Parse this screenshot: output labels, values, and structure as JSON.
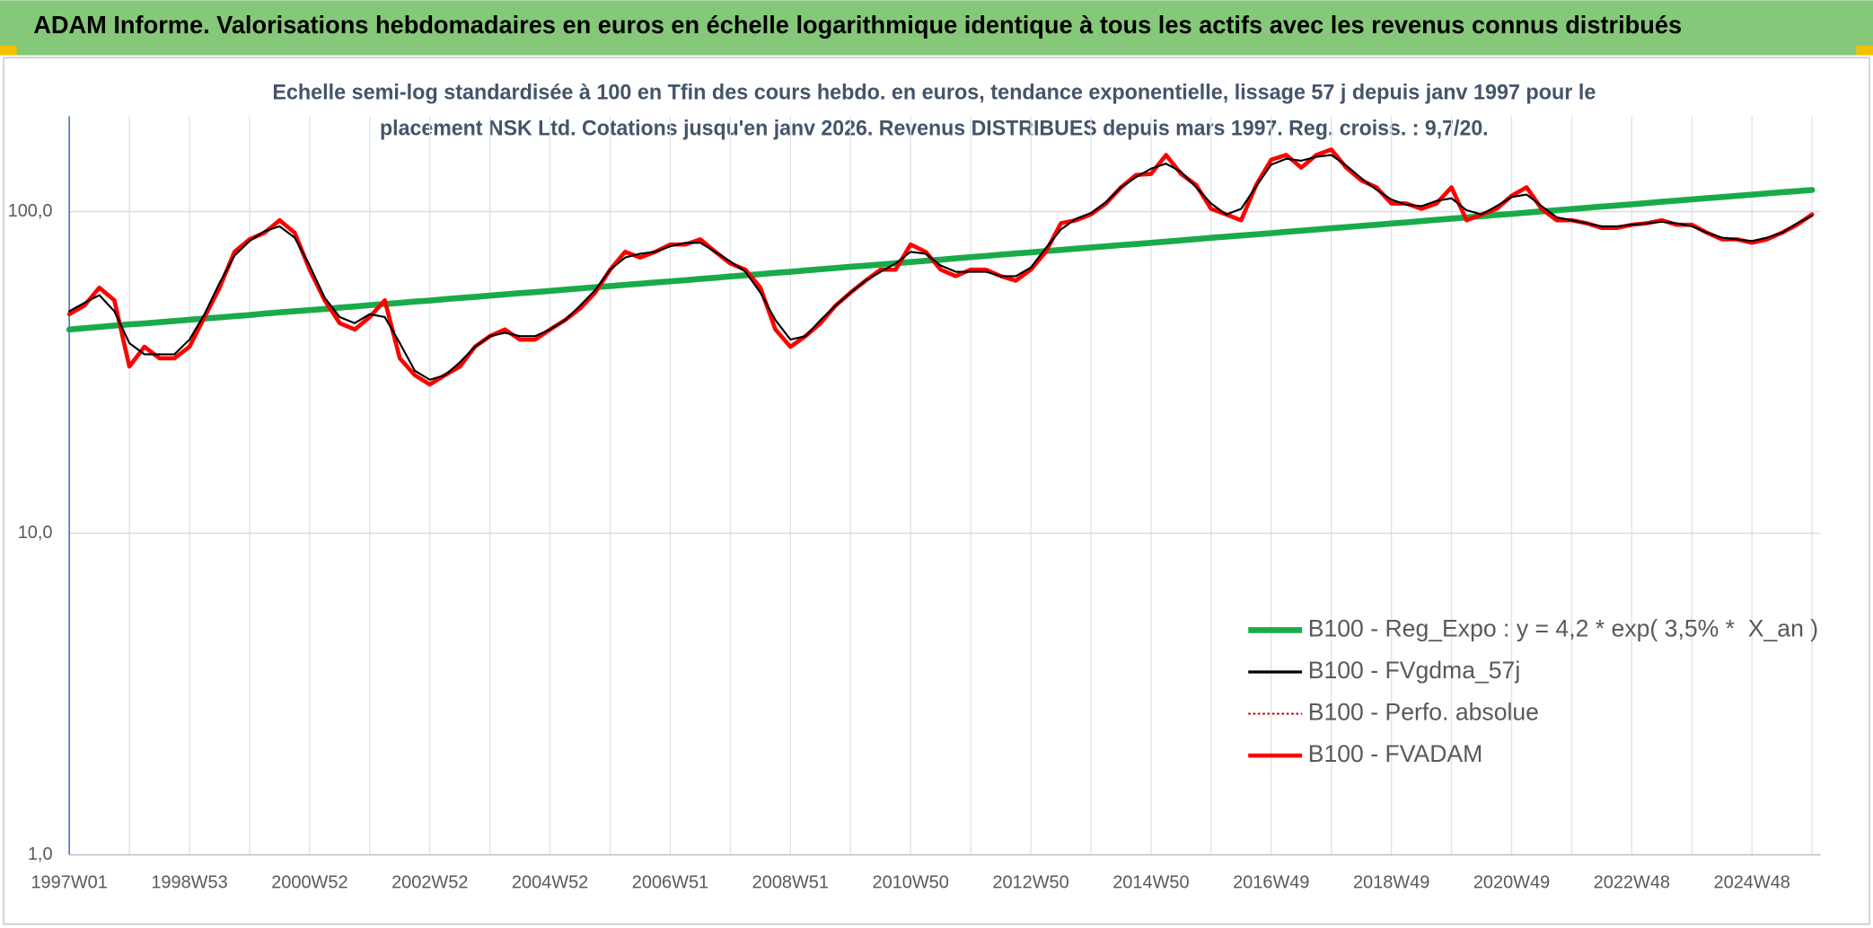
{
  "chart_data": {
    "type": "line",
    "title": "ADAM Informe. Valorisations hebdomadaires en euros en échelle logarithmique identique à tous les actifs avec les revenus connus distribués",
    "subtitle": [
      "Echelle semi-log standardisée à 100 en Tfin des cours hebdo. en euros, tendance exponentielle, lissage 57 j depuis janv 1997 pour le",
      "placement NSK Ltd. Cotations jusqu'en janv 2026. Revenus DISTRIBUES depuis mars 1997. Reg. croiss. : 9,7/20."
    ],
    "log_scale": true,
    "grid": true,
    "legend": "lower right",
    "ylim": [
      1,
      198
    ],
    "yticks": [
      {
        "value": 1,
        "label": "1,0"
      },
      {
        "value": 10,
        "label": "10,0"
      },
      {
        "value": 100,
        "label": "100,0"
      }
    ],
    "categories": [
      "1997W01",
      null,
      null,
      null,
      null,
      null,
      null,
      null,
      "1998W53",
      null,
      null,
      null,
      null,
      null,
      null,
      null,
      "2000W52",
      null,
      null,
      null,
      null,
      null,
      null,
      null,
      "2002W52",
      null,
      null,
      null,
      null,
      null,
      null,
      null,
      "2004W52",
      null,
      null,
      null,
      null,
      null,
      null,
      null,
      "2006W51",
      null,
      null,
      null,
      null,
      null,
      null,
      null,
      "2008W51",
      null,
      null,
      null,
      null,
      null,
      null,
      null,
      "2010W50",
      null,
      null,
      null,
      null,
      null,
      null,
      null,
      "2012W50",
      null,
      null,
      null,
      null,
      null,
      null,
      null,
      "2014W50",
      null,
      null,
      null,
      null,
      null,
      null,
      null,
      "2016W49",
      null,
      null,
      null,
      null,
      null,
      null,
      null,
      "2018W49",
      null,
      null,
      null,
      null,
      null,
      null,
      null,
      "2020W49",
      null,
      null,
      null,
      null,
      null,
      null,
      null,
      "2022W48",
      null,
      null,
      null,
      null,
      null,
      null,
      null,
      "2024W48",
      null,
      null,
      null,
      null
    ],
    "series": [
      {
        "name": "B100 - Reg_Expo : y = 4,2 * exp( 3,5% *  X_an )",
        "color": "#1aaa4a",
        "style": "solid",
        "values": [
          43,
          43.4,
          43.8,
          44.2,
          44.6,
          44.9,
          45.3,
          45.7,
          46.1,
          46.5,
          46.9,
          47.3,
          47.7,
          48.2,
          48.6,
          49.0,
          49.4,
          49.8,
          50.3,
          50.7,
          51.2,
          51.6,
          52.0,
          52.5,
          52.9,
          53.4,
          53.9,
          54.3,
          54.8,
          55.3,
          55.8,
          56.2,
          56.7,
          57.2,
          57.7,
          58.2,
          58.7,
          59.2,
          59.7,
          60.2,
          60.7,
          61.2,
          61.8,
          62.3,
          62.9,
          63.4,
          63.9,
          64.5,
          65.0,
          65.6,
          66.2,
          66.8,
          67.4,
          67.9,
          68.5,
          69.1,
          69.7,
          70.3,
          70.9,
          71.6,
          72.2,
          72.8,
          73.5,
          74.1,
          74.7,
          75.4,
          76.0,
          76.7,
          77.4,
          78.0,
          78.7,
          79.3,
          80.0,
          80.7,
          81.4,
          82.1,
          82.9,
          83.6,
          84.3,
          85.0,
          85.7,
          86.5,
          87.2,
          88.0,
          88.8,
          89.5,
          90.3,
          91.0,
          91.8,
          92.6,
          93.5,
          94.3,
          95.1,
          95.9,
          96.8,
          97.6,
          98.4,
          99.3,
          100.2,
          101.0,
          101.9,
          102.8,
          103.7,
          104.5,
          105.4,
          106.3,
          107.3,
          108.2,
          109.2,
          110.1,
          111.0,
          112.0,
          112.9,
          113.9,
          114.9,
          115.8,
          116.8
        ]
      },
      {
        "name": "B100 - FVgdma_57j",
        "color": "#000000",
        "style": "solid",
        "values": [
          49,
          52,
          55,
          49,
          39,
          36,
          36,
          36,
          40,
          48,
          60,
          73,
          81,
          87,
          90,
          83,
          68,
          54,
          47,
          45,
          48,
          47,
          39,
          32,
          30,
          31,
          34,
          38,
          41,
          42,
          41,
          41,
          43,
          46,
          51,
          57,
          66,
          72,
          74,
          75,
          78,
          80,
          80,
          75,
          70,
          65,
          56,
          46,
          40,
          41,
          46,
          51,
          56,
          61,
          65,
          69,
          75,
          74,
          68,
          65,
          65,
          65,
          63,
          63,
          67,
          77,
          88,
          95,
          99,
          107,
          119,
          128,
          136,
          141,
          133,
          119,
          106,
          98,
          102,
          120,
          140,
          146,
          144,
          148,
          150,
          139,
          127,
          117,
          109,
          105,
          104,
          108,
          110,
          101,
          98,
          104,
          111,
          113,
          104,
          96,
          94,
          92,
          90,
          90,
          91,
          92,
          93,
          92,
          90,
          86,
          83,
          82,
          81,
          83,
          86,
          92,
          97
        ]
      },
      {
        "name": "B100 - Perfo. absolue",
        "color": "#c00000",
        "style": "dotted",
        "values": [
          48,
          51,
          58,
          53,
          33,
          38,
          35,
          35,
          38,
          47,
          58,
          75,
          82,
          86,
          94,
          86,
          66,
          53,
          45,
          43,
          47,
          53,
          35,
          31,
          29,
          31,
          33,
          38,
          41,
          43,
          40,
          40,
          43,
          46,
          50,
          56,
          66,
          75,
          72,
          75,
          79,
          79,
          82,
          75,
          69,
          66,
          58,
          43,
          38,
          41,
          45,
          51,
          56,
          61,
          66,
          66,
          79,
          75,
          66,
          63,
          66,
          66,
          63,
          61,
          66,
          75,
          92,
          94,
          98,
          106,
          119,
          130,
          131,
          150,
          131,
          121,
          102,
          98,
          94,
          121,
          145,
          150,
          137,
          150,
          156,
          137,
          125,
          119,
          106,
          106,
          102,
          106,
          119,
          94,
          98,
          102,
          112,
          119,
          102,
          94,
          94,
          92,
          89,
          89,
          91,
          92,
          94,
          91,
          91,
          86,
          82,
          82,
          80,
          82,
          86,
          91,
          98
        ]
      },
      {
        "name": "B100 - FVADAM",
        "color": "#ff0000",
        "style": "solid",
        "values": [
          48,
          51,
          58,
          53,
          33,
          38,
          35,
          35,
          38,
          47,
          58,
          75,
          82,
          86,
          94,
          86,
          66,
          53,
          45,
          43,
          47,
          53,
          35,
          31,
          29,
          31,
          33,
          38,
          41,
          43,
          40,
          40,
          43,
          46,
          50,
          56,
          66,
          75,
          72,
          75,
          79,
          79,
          82,
          75,
          69,
          66,
          58,
          43,
          38,
          41,
          45,
          51,
          56,
          61,
          66,
          66,
          79,
          75,
          66,
          63,
          66,
          66,
          63,
          61,
          66,
          75,
          92,
          94,
          98,
          106,
          119,
          130,
          131,
          150,
          131,
          121,
          102,
          98,
          94,
          121,
          145,
          150,
          137,
          150,
          156,
          137,
          125,
          119,
          106,
          106,
          102,
          106,
          119,
          94,
          98,
          102,
          112,
          119,
          102,
          94,
          94,
          92,
          89,
          89,
          91,
          92,
          94,
          91,
          91,
          86,
          82,
          82,
          80,
          82,
          86,
          91,
          98
        ]
      }
    ]
  }
}
